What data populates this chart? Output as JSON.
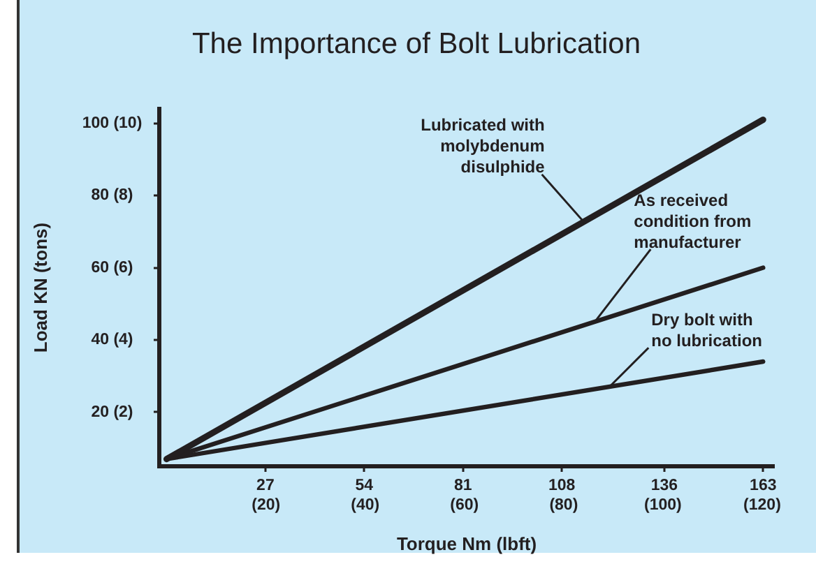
{
  "chart_data": {
    "type": "line",
    "title": "The Importance of Bolt Lubrication",
    "xlabel": "Torque Nm (lbft)",
    "ylabel": "Load KN (tons)",
    "x": [
      0,
      163
    ],
    "series": [
      {
        "color": "#231f20",
        "values": [
          7,
          101
        ]
      },
      {
        "color": "#231f20",
        "values": [
          7,
          60
        ]
      },
      {
        "color": "#231f20",
        "values": [
          7,
          34
        ]
      }
    ],
    "xlim": [
      -2,
      166
    ],
    "ylim": [
      5,
      104
    ],
    "xticks": [
      27,
      54,
      81,
      108,
      136,
      163
    ],
    "x2lim": [
      -1.5,
      122.4
    ],
    "x2ticks": [
      {
        "value": 20,
        "label": "(20)"
      },
      {
        "value": 40,
        "label": "(40)"
      },
      {
        "value": 60,
        "label": "(60)"
      },
      {
        "value": 80,
        "label": "(80)"
      },
      {
        "value": 100,
        "label": "(100)"
      },
      {
        "value": 120,
        "label": "(120)"
      }
    ],
    "yticks": [
      20,
      40,
      60,
      80,
      100
    ],
    "y2lim": [
      0.5,
      10.4
    ],
    "y2ticks": [
      {
        "value": 2,
        "label": "(2)"
      },
      {
        "value": 4,
        "label": "(4)"
      },
      {
        "value": 6,
        "label": "(6)"
      },
      {
        "value": 8,
        "label": "(8)"
      },
      {
        "value": 10,
        "label": "(10)"
      }
    ],
    "annotations": [
      {
        "text": "Lubricated with\nmolybdenum\ndisulphide",
        "x": 114,
        "y": 72.7
      },
      {
        "text": "As received\ncondition from\nmanufacturer",
        "x": 117,
        "y": 45
      },
      {
        "text": "Dry bolt with\nno lubrication",
        "x": 121,
        "y": 27
      }
    ],
    "grid": false,
    "legend": false,
    "marker": "none",
    "line_style": "solid"
  }
}
